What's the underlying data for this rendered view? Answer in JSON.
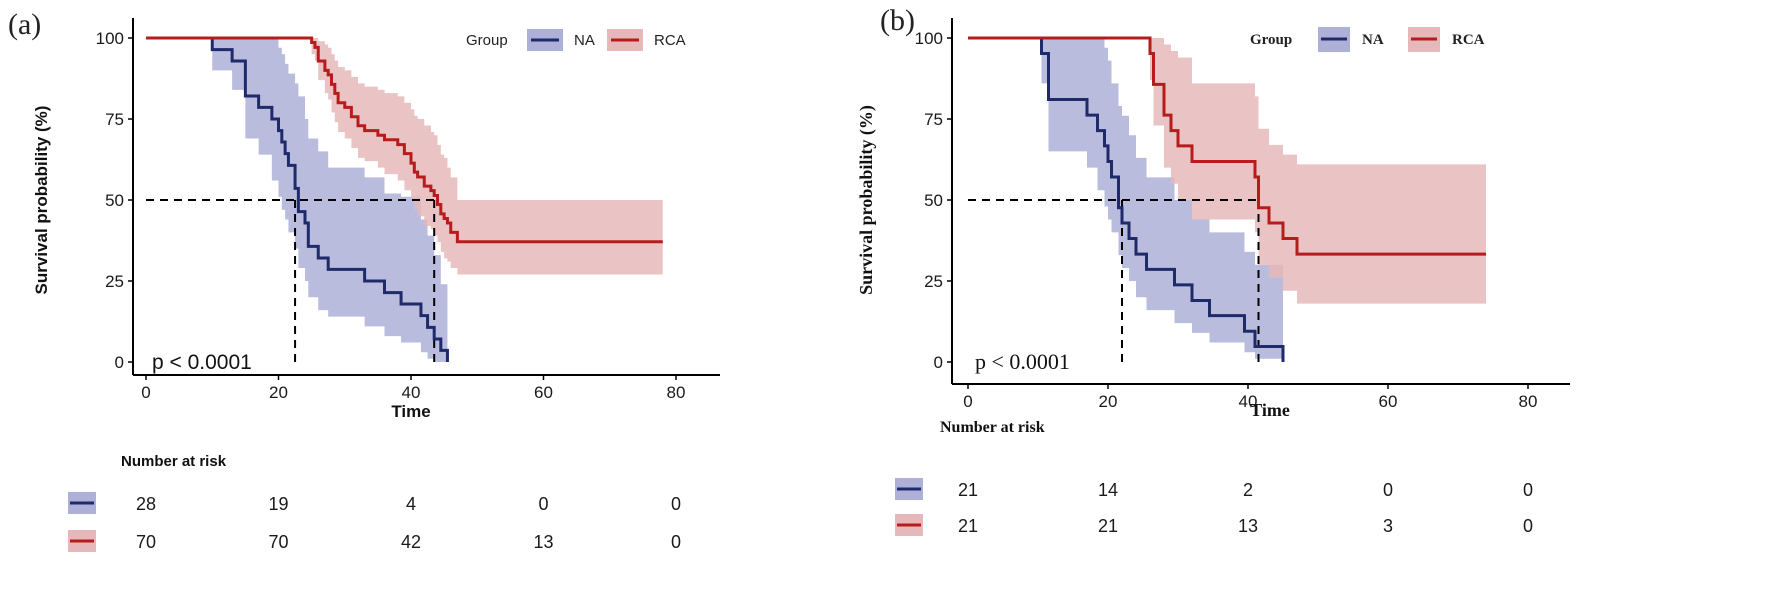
{
  "figure": {
    "colors": {
      "NA_line": "#1f2a6b",
      "NA_band": "#aeb0d8",
      "RCA_line": "#b71c1c",
      "RCA_band": "#e6b8ba",
      "median_line": "#000000"
    }
  },
  "chart_data": [
    {
      "type": "line",
      "panel_label": "(a)",
      "title": "",
      "xlabel": "Time",
      "ylabel": "Survival probability (%)",
      "xlim": [
        0,
        80
      ],
      "ylim": [
        0,
        100
      ],
      "xticks": [
        0,
        20,
        40,
        60,
        80
      ],
      "yticks": [
        0,
        25,
        50,
        75,
        100
      ],
      "grid": false,
      "legend": {
        "title": "Group",
        "position": "top-right",
        "entries": [
          "NA",
          "RCA"
        ]
      },
      "annotation": "p < 0.0001",
      "median_line_y": 50,
      "medians": {
        "NA": 22.5,
        "RCA": 43.5
      },
      "series": [
        {
          "name": "NA",
          "step_x": [
            0,
            10,
            13,
            15,
            17,
            19,
            20,
            20.5,
            21,
            21.5,
            22.5,
            23,
            24,
            24.5,
            26,
            27.5,
            33,
            36,
            38.5,
            41.5,
            42.5,
            43.5,
            44.5,
            45.5
          ],
          "step_y": [
            100,
            96.4,
            92.9,
            82.1,
            78.6,
            75,
            71.4,
            67.9,
            64.3,
            60.7,
            53.6,
            46.4,
            42.9,
            35.7,
            32.1,
            28.6,
            25,
            21.4,
            17.9,
            14.3,
            10.7,
            7.1,
            3.6,
            0
          ],
          "upper_ci": [
            100,
            100,
            100,
            100,
            100,
            100,
            97,
            95,
            92,
            89,
            86,
            82,
            75,
            69,
            65,
            60,
            57,
            52,
            51,
            44,
            39,
            33,
            24,
            24
          ],
          "lower_ci": [
            100,
            90,
            84,
            69,
            64,
            56,
            51,
            47,
            44,
            40,
            35,
            29,
            25,
            20,
            16,
            14,
            11,
            8,
            6,
            3,
            1,
            0,
            0,
            0
          ]
        },
        {
          "name": "RCA",
          "step_x": [
            0,
            25,
            25.5,
            26,
            27,
            27.5,
            28,
            28.5,
            29,
            30,
            31,
            32,
            33,
            35,
            36,
            38,
            39,
            40,
            40.5,
            41,
            42,
            43,
            43.5,
            44,
            44.5,
            45,
            45.5,
            46,
            47,
            78
          ],
          "step_y": [
            100,
            98.6,
            97.1,
            92.9,
            90,
            88.6,
            85.7,
            82.9,
            80,
            78.6,
            75.7,
            72.9,
            71.4,
            70,
            68.6,
            67.1,
            64.3,
            61.4,
            58.6,
            57.1,
            54.3,
            52.9,
            51.4,
            48.6,
            45.7,
            44.3,
            42.9,
            40,
            37.1,
            37.1
          ],
          "upper_ci": [
            100,
            100,
            100,
            99,
            98,
            97,
            95,
            93,
            91,
            90,
            88,
            86,
            85,
            84,
            83,
            82,
            80,
            78,
            76,
            75,
            73,
            71,
            70,
            67,
            64,
            63,
            60,
            57,
            50,
            50
          ],
          "lower_ci": [
            100,
            95,
            93,
            87,
            83,
            81,
            77,
            74,
            71,
            69,
            66,
            63,
            62,
            60,
            58,
            56,
            53,
            50,
            47,
            45,
            42,
            41,
            39,
            37,
            34,
            32,
            31,
            29,
            27,
            27
          ]
        }
      ],
      "risk_table": {
        "title": "Number at risk",
        "times": [
          0,
          20,
          40,
          60,
          80
        ],
        "rows": [
          {
            "group": "NA",
            "values": [
              28,
              19,
              4,
              0,
              0
            ]
          },
          {
            "group": "RCA",
            "values": [
              70,
              70,
              42,
              13,
              0
            ]
          }
        ]
      }
    },
    {
      "type": "line",
      "panel_label": "(b)",
      "title": "",
      "xlabel": "Time",
      "ylabel": "Survival probability (%)",
      "xlim": [
        0,
        80
      ],
      "ylim": [
        0,
        100
      ],
      "xticks": [
        0,
        20,
        40,
        60,
        80
      ],
      "yticks": [
        0,
        25,
        50,
        75,
        100
      ],
      "grid": false,
      "legend": {
        "title": "Group",
        "position": "top-right",
        "entries": [
          "NA",
          "RCA"
        ]
      },
      "annotation": "p < 0.0001",
      "median_line_y": 50,
      "medians": {
        "NA": 22,
        "RCA": 41.5
      },
      "series": [
        {
          "name": "NA",
          "step_x": [
            0,
            10.5,
            11.5,
            17,
            18.5,
            19.5,
            20,
            20.5,
            21.5,
            22,
            23,
            24,
            25.5,
            29.5,
            32,
            34.5,
            39.5,
            41,
            45
          ],
          "step_y": [
            100,
            95.2,
            81,
            76.2,
            71.4,
            66.7,
            61.9,
            57.1,
            47.6,
            42.9,
            38.1,
            33.3,
            28.6,
            23.8,
            19,
            14.3,
            9.5,
            4.8,
            0
          ],
          "upper_ci": [
            100,
            100,
            100,
            100,
            100,
            97,
            93,
            86,
            79,
            76,
            70,
            63,
            57,
            50,
            44,
            40,
            34,
            30,
            30
          ],
          "lower_ci": [
            100,
            86,
            65,
            60,
            53,
            48,
            44,
            40,
            33,
            29,
            25,
            20,
            16,
            12,
            9,
            6,
            3,
            1,
            1
          ]
        },
        {
          "name": "RCA",
          "step_x": [
            0,
            26,
            26.5,
            28,
            29,
            30,
            32,
            41,
            41.5,
            43,
            45,
            47,
            74
          ],
          "step_y": [
            100,
            95.2,
            85.7,
            76.2,
            71.4,
            66.7,
            61.9,
            57.1,
            47.6,
            42.9,
            38.1,
            33.3,
            33.3
          ],
          "upper_ci": [
            100,
            100,
            100,
            98,
            96,
            94,
            86,
            82,
            72,
            67,
            64,
            61,
            61
          ],
          "lower_ci": [
            100,
            87,
            73,
            60,
            55,
            50,
            44,
            40,
            30,
            26,
            22,
            18,
            18
          ]
        }
      ],
      "risk_table": {
        "title": "Number at risk",
        "times": [
          0,
          20,
          40,
          60,
          80
        ],
        "rows": [
          {
            "group": "NA",
            "values": [
              21,
              14,
              2,
              0,
              0
            ]
          },
          {
            "group": "RCA",
            "values": [
              21,
              21,
              13,
              3,
              0
            ]
          }
        ]
      }
    }
  ]
}
